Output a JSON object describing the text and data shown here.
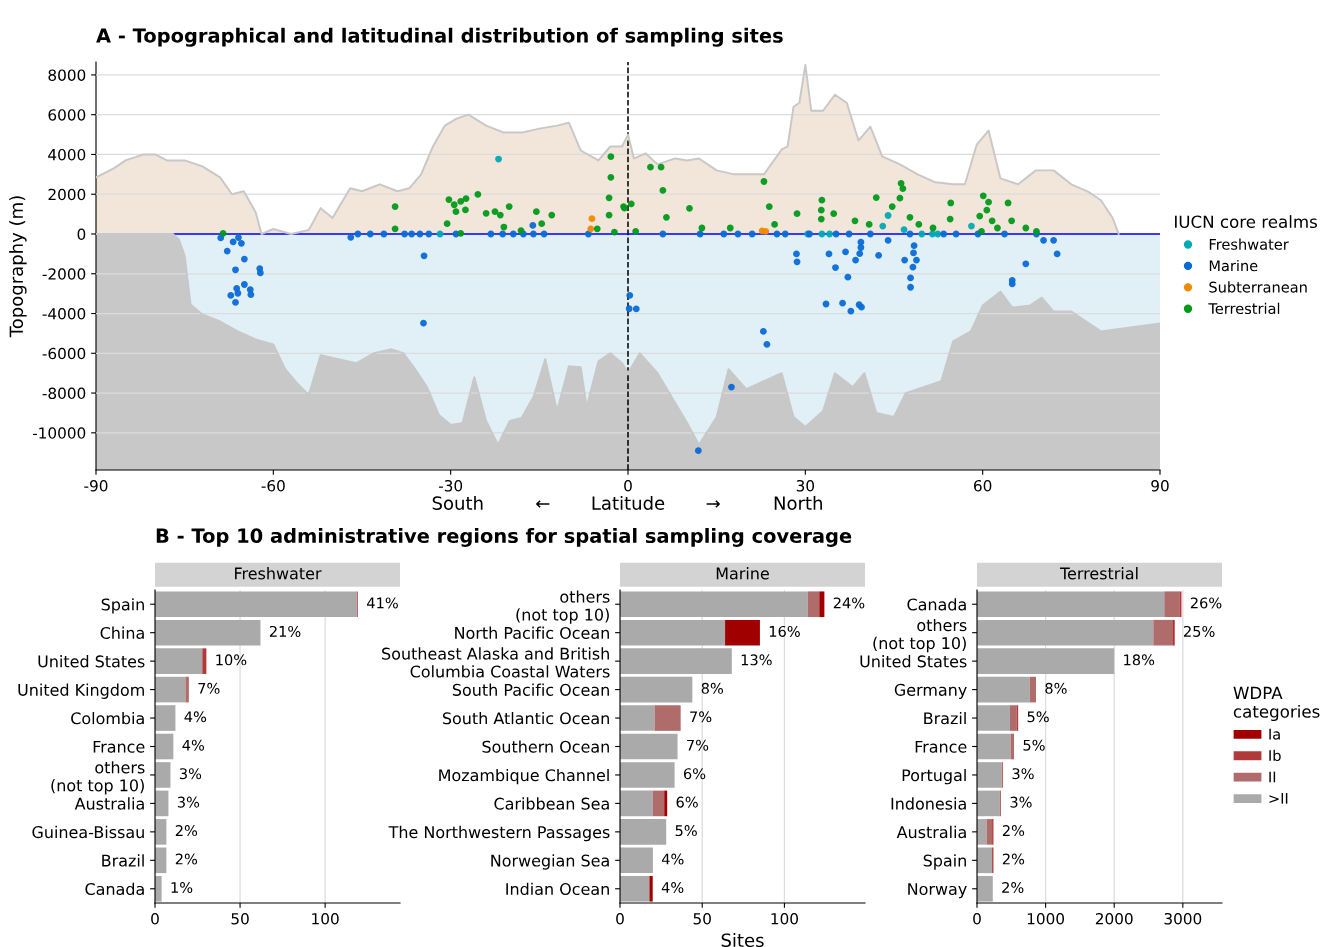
{
  "chart_data": [
    {
      "type": "scatter",
      "title": "A - Topographical and latitudinal distribution of sampling sites",
      "xlabel": "South ← Latitude → North",
      "ylabel": "Topography (m)",
      "legend_title": "IUCN core realms",
      "legend": "right",
      "grid": "y",
      "xlim": [
        -90,
        90
      ],
      "xticks": [
        -90,
        -60,
        -30,
        0,
        30,
        60,
        90
      ],
      "ylim": [
        -11870,
        8650
      ],
      "yticks": [
        -10000,
        -8000,
        -6000,
        -4000,
        -2000,
        0,
        2000,
        4000,
        6000,
        8000
      ],
      "bands": [
        {
          "axis": "y",
          "from": -11870,
          "to": 0,
          "color": "#c8c8c8"
        }
      ],
      "ref_lines": [
        {
          "axis": "x",
          "value": 0,
          "color": "#000000",
          "line_style": "dashed"
        },
        {
          "axis": "y",
          "value": 0,
          "color": "#0000ff",
          "line_style": "solid"
        }
      ],
      "series": [
        {
          "type": "area",
          "color": "#f2e5da",
          "x": [
            -90,
            -87,
            -85,
            -82,
            -80,
            -78,
            -75,
            -72,
            -69,
            -67,
            -65,
            -63,
            -62,
            -60,
            -57,
            -54,
            -52,
            -50,
            -47,
            -45,
            -42,
            -39,
            -37,
            -35,
            -33,
            -31,
            -29,
            -27,
            -24,
            -21,
            -18,
            -15,
            -12,
            -10,
            -8,
            -5,
            -3,
            -1,
            0,
            1,
            3,
            5,
            8,
            10,
            12,
            15,
            18,
            20,
            23,
            26,
            27,
            28,
            29,
            30,
            31,
            33,
            35,
            37,
            39,
            41,
            43,
            46,
            49,
            52,
            55,
            57,
            59,
            61,
            63,
            66,
            69,
            72,
            75,
            78,
            80,
            82,
            83
          ],
          "values": [
            2850,
            3300,
            3700,
            4000,
            4000,
            3700,
            3700,
            3400,
            2850,
            2000,
            2150,
            1100,
            0,
            250,
            0,
            200,
            1300,
            800,
            2300,
            2150,
            2500,
            2150,
            2300,
            3000,
            4400,
            5450,
            5800,
            6000,
            5450,
            5100,
            5100,
            5300,
            5450,
            5600,
            4200,
            3700,
            4400,
            4400,
            5000,
            3800,
            4050,
            3500,
            3800,
            3700,
            3800,
            3200,
            3000,
            3000,
            3000,
            4250,
            4400,
            6400,
            6600,
            8500,
            6200,
            6200,
            7000,
            6600,
            4700,
            5400,
            3900,
            3500,
            3000,
            2600,
            2500,
            2500,
            4500,
            5200,
            2800,
            2500,
            3200,
            3200,
            2500,
            2100,
            1700,
            800,
            0
          ]
        },
        {
          "type": "area",
          "color": "#e0f0f6",
          "x": [
            -90,
            -77,
            -76,
            -75,
            -74,
            -72,
            -69,
            -66,
            -63,
            -60,
            -58,
            -56,
            -54,
            -52,
            -49,
            -46,
            -43,
            -40,
            -38,
            -36,
            -34,
            -32,
            -30,
            -28,
            -26,
            -24,
            -22,
            -20,
            -18,
            -16,
            -14,
            -12,
            -10,
            -8,
            -7,
            -5,
            -3,
            -1,
            0,
            2,
            5,
            10,
            12,
            15,
            17,
            20,
            23,
            26,
            28,
            30,
            33,
            35,
            38,
            40,
            42,
            45,
            47,
            50,
            53,
            55,
            58,
            60,
            63,
            65,
            68,
            70,
            72,
            75,
            80,
            85,
            90
          ],
          "values": [
            0,
            0,
            -260,
            -1100,
            -3550,
            -4050,
            -4400,
            -4900,
            -5300,
            -5550,
            -6800,
            -7500,
            -8100,
            -6100,
            -6300,
            -6500,
            -6000,
            -5800,
            -6000,
            -6800,
            -7700,
            -9100,
            -9600,
            -9500,
            -7200,
            -9400,
            -10600,
            -9400,
            -9250,
            -8200,
            -6300,
            -8900,
            -6650,
            -6700,
            -8700,
            -6400,
            -6000,
            -6500,
            -7000,
            -6000,
            -7000,
            -9500,
            -10600,
            -9200,
            -6800,
            -7800,
            -7400,
            -7000,
            -9200,
            -9700,
            -8900,
            -7000,
            -7700,
            -7000,
            -9000,
            -9200,
            -8000,
            -7700,
            -7400,
            -5400,
            -4900,
            -3600,
            -2900,
            -3700,
            -3600,
            -3200,
            -3900,
            -3900,
            -4900,
            -4700,
            -4500
          ]
        },
        {
          "type": "scatter",
          "name": "Freshwater",
          "color": "#00aab5",
          "marker": "circle",
          "x": [
            -31.8,
            -21.9,
            30.4,
            32.8,
            34.1,
            44,
            43.1,
            46.7,
            49.7,
            51.5,
            52.4,
            58.1
          ],
          "values": [
            0,
            3770,
            0,
            0,
            0,
            930,
            400,
            215,
            0,
            0,
            0,
            400
          ]
        },
        {
          "type": "scatter",
          "name": "Marine",
          "color": "#0a6ad6",
          "marker": "circle",
          "x": [
            -68.9,
            -67.8,
            -66.8,
            -65.4,
            -65.9,
            -64.9,
            -66.4,
            -62.3,
            -62.2,
            -64.9,
            -66.2,
            -67.2,
            -63.9,
            -63.8,
            -66.0,
            -66.4,
            -46.9,
            -45.7,
            -43.6,
            -41.3,
            -37.8,
            -36.6,
            -35.2,
            -33.7,
            -34.5,
            -34.6,
            -29.1,
            -23.2,
            -21.2,
            -19.4,
            -17.7,
            -16.0,
            -14.2,
            -16.1,
            -6.7,
            0.3,
            0.2,
            1.4,
            5.9,
            12.2,
            16.2,
            18.6,
            21,
            25.2,
            26.6,
            30.7,
            35.2,
            37.4,
            41,
            44,
            47.7,
            53.4,
            55.5,
            59.2,
            63.7,
            69.1,
            70.3,
            72,
            72.6,
            67.3,
            65,
            65,
            47.8,
            47.8,
            48.2,
            48.8,
            48.3,
            46.8,
            48.4,
            39.4,
            39.4,
            39.2,
            38.5,
            42.4,
            36.8,
            34,
            35.1,
            37.2,
            28.5,
            28.6,
            33.5,
            36.3,
            37.7,
            39.1,
            39.5,
            22.9,
            23.5,
            17.5,
            11.9
          ],
          "values": [
            -200,
            -860,
            -400,
            -470,
            -180,
            -1260,
            -1800,
            -1740,
            -1960,
            -2540,
            -2740,
            -3090,
            -2800,
            -3050,
            -2980,
            -3440,
            -170,
            0,
            0,
            0,
            0,
            0,
            0,
            0,
            -1100,
            -4480,
            0,
            0,
            0,
            0,
            0,
            0,
            0,
            430,
            0,
            -3090,
            -3760,
            -3770,
            0,
            0,
            0,
            0,
            0,
            0,
            0,
            0,
            0,
            0,
            0,
            -320,
            0,
            0,
            0,
            0,
            0,
            0,
            -320,
            -320,
            -1000,
            -1500,
            -2330,
            -2510,
            -2210,
            -2680,
            -1670,
            -1310,
            -950,
            -1310,
            -590,
            -410,
            -680,
            -990,
            -1310,
            -1080,
            -900,
            -1000,
            -1690,
            -2170,
            -1000,
            -1400,
            -3520,
            -3480,
            -3880,
            -3560,
            -3680,
            -4900,
            -5550,
            -7700,
            -10900
          ]
        },
        {
          "type": "scatter",
          "name": "Subterranean",
          "color": "#f08a00",
          "marker": "circle",
          "x": [
            -6.1,
            -6.3,
            22.7,
            23.3
          ],
          "values": [
            770,
            260,
            160,
            130
          ]
        },
        {
          "type": "scatter",
          "name": "Terrestrial",
          "color": "#009a1a",
          "marker": "circle",
          "x": [
            -68.5,
            -39.4,
            -39.4,
            -30.3,
            -29.4,
            -29.1,
            -28.3,
            -27.4,
            -25.4,
            -27.5,
            -30.6,
            -28.3,
            -24.0,
            -22.5,
            -21.6,
            -20.1,
            -21.0,
            -15.5,
            -14.6,
            -12.9,
            -18.1,
            -5.2,
            -2.9,
            -2.9,
            -3.2,
            -3.2,
            -0.6,
            -2.3,
            -0.75,
            0.55,
            1.3,
            5.6,
            5.9,
            6.5,
            10.4,
            12.5,
            17.3,
            23.0,
            23.9,
            24.8,
            28.6,
            32.7,
            32.7,
            34.8,
            38.4,
            40.8,
            42.0,
            44.7,
            46.2,
            46.5,
            47.7,
            49.2,
            51.6,
            54.6,
            54.5,
            60.1,
            60.7,
            61.6,
            62.5,
            64.3,
            64.9,
            67.3,
            69.1,
            59.8,
            3.8,
            32.8,
            46.0,
            61.0,
            59.5
          ],
          "values": [
            30,
            1380,
            260,
            1730,
            1470,
            1120,
            1640,
            1780,
            1990,
            1210,
            520,
            30,
            1040,
            1120,
            950,
            1380,
            350,
            1120,
            520,
            950,
            170,
            260,
            3890,
            2850,
            1820,
            950,
            1300,
            90,
            1380,
            1510,
            130,
            3360,
            2190,
            840,
            1290,
            300,
            300,
            2640,
            1380,
            480,
            1020,
            1200,
            750,
            1020,
            660,
            480,
            1830,
            1380,
            2550,
            2280,
            840,
            480,
            300,
            1560,
            750,
            1920,
            1200,
            660,
            300,
            1560,
            660,
            300,
            130,
            130,
            3360,
            1700,
            1800,
            1600,
            900
          ]
        }
      ]
    },
    {
      "type": "bar",
      "orientation": "horizontal",
      "stacked": true,
      "title": "B - Top 10 administrative regions for spatial sampling coverage",
      "subtitle": "Freshwater",
      "grid": "x",
      "xlim": [
        0,
        144
      ],
      "xticks": [
        0,
        50,
        100
      ],
      "categories": [
        "Spain",
        "China",
        "United States",
        "United Kingdom",
        "Colombia",
        "France",
        "others\n(not top 10)",
        "Australia",
        "Guinea-Bissau",
        "Brazil",
        "Canada"
      ],
      "series": [
        {
          "color": "#aaaaaa",
          "values": [
            118.5,
            62,
            27.8,
            17.9,
            12,
            10.8,
            9.1,
            7.9,
            6.7,
            6.7,
            3.9
          ]
        },
        {
          "color": "#b06b6b",
          "values": [
            0.8,
            null,
            null,
            2.0,
            null,
            null,
            null,
            null,
            null,
            null,
            null
          ]
        },
        {
          "color": "#b03a3a",
          "values": [
            null,
            null,
            2.4,
            null,
            null,
            null,
            null,
            null,
            null,
            null,
            null
          ]
        }
      ],
      "annotations": [
        {
          "text": "41%",
          "x": 119.3,
          "y": "Spain"
        },
        {
          "text": "21%",
          "x": 62,
          "y": "China"
        },
        {
          "text": "10%",
          "x": 30.2,
          "y": "United States"
        },
        {
          "text": "7%",
          "x": 19.9,
          "y": "United Kingdom"
        },
        {
          "text": "4%",
          "x": 12,
          "y": "Colombia"
        },
        {
          "text": "4%",
          "x": 10.8,
          "y": "France"
        },
        {
          "text": "3%",
          "x": 9.1,
          "y": "others\n(not top 10)"
        },
        {
          "text": "3%",
          "x": 7.9,
          "y": "Australia"
        },
        {
          "text": "2%",
          "x": 6.7,
          "y": "Guinea-Bissau"
        },
        {
          "text": "2%",
          "x": 6.7,
          "y": "Brazil"
        },
        {
          "text": "1%",
          "x": 3.9,
          "y": "Canada"
        }
      ]
    },
    {
      "type": "bar",
      "orientation": "horizontal",
      "stacked": true,
      "subtitle": "Marine",
      "xlabel": "Sites",
      "grid": "x",
      "xlim": [
        0,
        149
      ],
      "xticks": [
        0,
        50,
        100
      ],
      "categories": [
        "others\n(not top 10)",
        "North Pacific Ocean",
        "Southeast Alaska and British\nColumbia Coastal Waters",
        "South Pacific Ocean",
        "South Atlantic Ocean",
        "Southern Ocean",
        "Mozambique Channel",
        "Caribbean Sea",
        "The Northwestern Passages",
        "Norwegian Sea",
        "Indian Ocean"
      ],
      "series": [
        {
          "color": "#aaaaaa",
          "values": [
            114.1,
            63.9,
            68,
            44,
            21,
            35,
            33.2,
            20,
            28.1,
            20,
            17.9
          ]
        },
        {
          "color": "#b06b6b",
          "values": [
            7.1,
            null,
            null,
            null,
            15.9,
            null,
            null,
            6.9,
            null,
            null,
            null
          ]
        },
        {
          "color": "#a00000",
          "values": [
            3.1,
            21.2,
            null,
            null,
            null,
            null,
            null,
            1.8,
            null,
            null,
            2.0
          ]
        }
      ],
      "annotations": [
        {
          "text": "24%",
          "x": 124.3,
          "y": "others\n(not top 10)"
        },
        {
          "text": "16%",
          "x": 85.1,
          "y": "North Pacific Ocean"
        },
        {
          "text": "13%",
          "x": 68,
          "y": "Southeast Alaska and British\nColumbia Coastal Waters"
        },
        {
          "text": "8%",
          "x": 44,
          "y": "South Pacific Ocean"
        },
        {
          "text": "7%",
          "x": 36.9,
          "y": "South Atlantic Ocean"
        },
        {
          "text": "7%",
          "x": 35,
          "y": "Southern Ocean"
        },
        {
          "text": "6%",
          "x": 33.2,
          "y": "Mozambique Channel"
        },
        {
          "text": "6%",
          "x": 28.7,
          "y": "Caribbean Sea"
        },
        {
          "text": "5%",
          "x": 28.1,
          "y": "The Northwestern Passages"
        },
        {
          "text": "4%",
          "x": 20,
          "y": "Norwegian Sea"
        },
        {
          "text": "4%",
          "x": 19.9,
          "y": "Indian Ocean"
        }
      ]
    },
    {
      "type": "bar",
      "orientation": "horizontal",
      "stacked": true,
      "subtitle": "Terrestrial",
      "grid": "x",
      "xlim": [
        0,
        3571
      ],
      "xticks": [
        0,
        1000,
        2000,
        3000
      ],
      "legend": "right",
      "legend_title": "WDPA\ncategories",
      "categories": [
        "Canada",
        "others\n(not top 10)",
        "United States",
        "Germany",
        "Brazil",
        "France",
        "Portugal",
        "Indonesia",
        "Australia",
        "Spain",
        "Norway"
      ],
      "series": [
        {
          "name": ">II",
          "color": "#aaaaaa",
          "values": [
            2730,
            2570,
            2000,
            770,
            480,
            490,
            360,
            330,
            140,
            220,
            230
          ]
        },
        {
          "name": "II",
          "color": "#b06b6b",
          "values": [
            220,
            290,
            null,
            90,
            100,
            50,
            20,
            20,
            80,
            null,
            null
          ]
        },
        {
          "name": "Ib",
          "color": "#b03a3a",
          "values": [
            30,
            null,
            null,
            null,
            20,
            null,
            null,
            null,
            20,
            20,
            null
          ]
        },
        {
          "name": "Ia",
          "color": "#a00000",
          "values": [
            null,
            20,
            null,
            null,
            null,
            null,
            null,
            null,
            null,
            null,
            null
          ]
        }
      ],
      "annotations": [
        {
          "text": "26%",
          "x": 2980,
          "y": "Canada"
        },
        {
          "text": "25%",
          "x": 2880,
          "y": "others\n(not top 10)"
        },
        {
          "text": "18%",
          "x": 2000,
          "y": "United States"
        },
        {
          "text": "8%",
          "x": 860,
          "y": "Germany"
        },
        {
          "text": "5%",
          "x": 600,
          "y": "Brazil"
        },
        {
          "text": "5%",
          "x": 540,
          "y": "France"
        },
        {
          "text": "3%",
          "x": 380,
          "y": "Portugal"
        },
        {
          "text": "3%",
          "x": 350,
          "y": "Indonesia"
        },
        {
          "text": "2%",
          "x": 240,
          "y": "Australia"
        },
        {
          "text": "2%",
          "x": 240,
          "y": "Spain"
        },
        {
          "text": "2%",
          "x": 230,
          "y": "Norway"
        }
      ]
    }
  ]
}
